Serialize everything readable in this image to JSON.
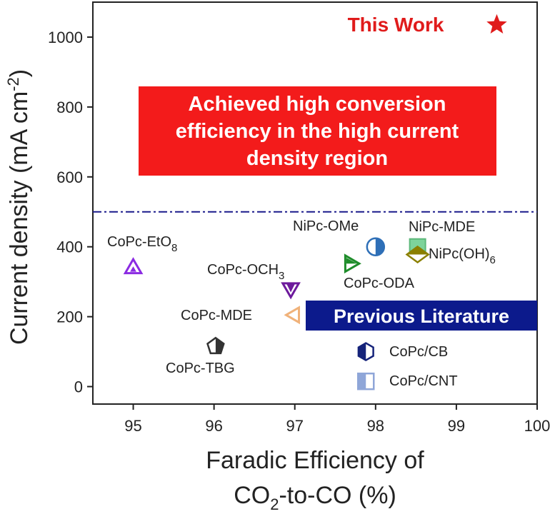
{
  "chart_data": {
    "type": "scatter",
    "xlabel_line1": "Faradic Efficiency of",
    "xlabel_line2_pre": "CO",
    "xlabel_line2_sub": "2",
    "xlabel_line2_post": "-to-CO (%)",
    "ylabel_pre": "Current density (mA cm",
    "ylabel_sup": "-2",
    "ylabel_post": ")",
    "xlim": [
      94.5,
      100
    ],
    "ylim": [
      -50,
      1100
    ],
    "xticks": [
      95,
      96,
      97,
      98,
      99,
      100
    ],
    "yticks": [
      0,
      200,
      400,
      600,
      800,
      1000
    ],
    "grid": false,
    "reference_line_y": 500,
    "highlight_box": {
      "lines": [
        "Achieved high conversion",
        "efficiency in the high current",
        "density region"
      ],
      "color": "#f31b1b"
    },
    "legend_box": {
      "label": "Previous Literature",
      "color": "#0c1a8c"
    },
    "this_work_label": "This Work",
    "points": [
      {
        "label": "This Work",
        "x": 99.5,
        "y": 1035,
        "marker": "star",
        "color": "#e01b1b"
      },
      {
        "label": "CoPc-EtO",
        "label_sub": "8",
        "x": 95.0,
        "y": 342,
        "marker": "triangle-up",
        "color": "#8b2be2"
      },
      {
        "label": "CoPc-OCH",
        "label_sub": "3",
        "x": 96.95,
        "y": 278,
        "marker": "triangle-down",
        "color": "#6d1a9c"
      },
      {
        "label": "CoPc-MDE",
        "x": 96.98,
        "y": 205,
        "marker": "triangle-left",
        "color": "#f0b27a"
      },
      {
        "label": "CoPc-TBG",
        "x": 96.02,
        "y": 115,
        "marker": "pentagon",
        "color": "#333333"
      },
      {
        "label": "NiPc-OMe",
        "x": 98.0,
        "y": 400,
        "marker": "circle-half",
        "color": "#2e6fb7"
      },
      {
        "label": "CoPc-ODA",
        "x": 97.7,
        "y": 352,
        "marker": "triangle-right",
        "color": "#1e8c2a"
      },
      {
        "label": "NiPc-MDE",
        "x": 98.52,
        "y": 400,
        "marker": "square",
        "color": "#7dd39a"
      },
      {
        "label": "NiPc(OH)",
        "label_sub": "6",
        "x": 98.52,
        "y": 378,
        "marker": "diamond",
        "color": "#8b8000"
      },
      {
        "label": "CoPc/CB",
        "x": 97.88,
        "y": 100,
        "marker": "hexagon-half",
        "color": "#15237a"
      },
      {
        "label": "CoPc/CNT",
        "x": 97.88,
        "y": 15,
        "marker": "square-half",
        "color": "#8fa6d8"
      }
    ]
  }
}
